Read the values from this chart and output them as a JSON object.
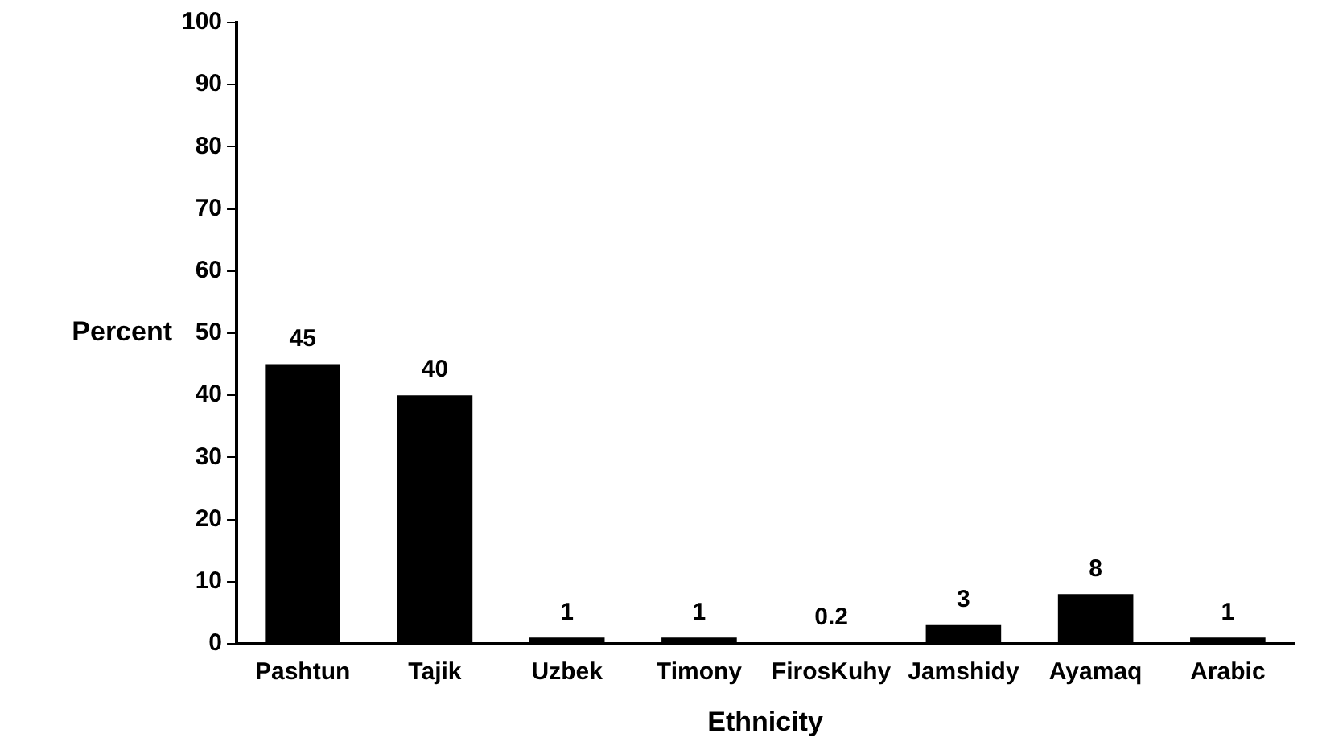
{
  "chart_data": {
    "type": "bar",
    "xlabel": "Ethnicity",
    "ylabel": "Percent",
    "categories": [
      "Pashtun",
      "Tajik",
      "Uzbek",
      "Timony",
      "FirosKuhy",
      "Jamshidy",
      "Ayamaq",
      "Arabic"
    ],
    "values": [
      45,
      40,
      1,
      1,
      0.2,
      3,
      8,
      1
    ],
    "color": "#000000",
    "ylim": [
      0,
      100
    ],
    "yticks": [
      0,
      10,
      20,
      30,
      40,
      50,
      60,
      70,
      80,
      90,
      100
    ],
    "grid": false,
    "legend": false,
    "data_labels": true
  }
}
